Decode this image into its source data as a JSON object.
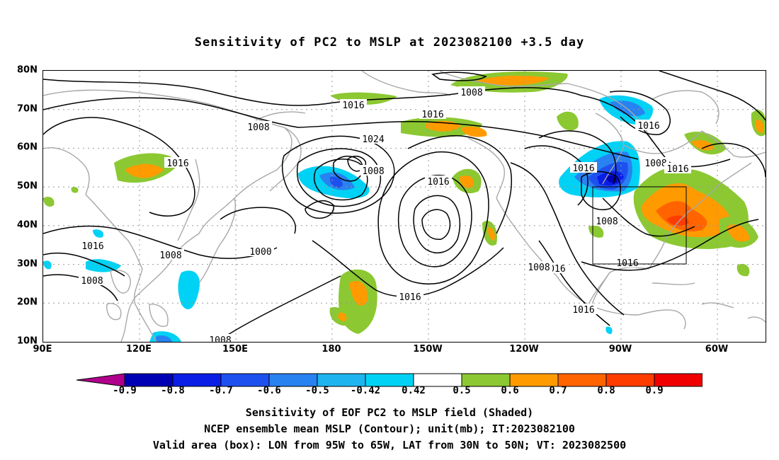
{
  "title": "Sensitivity of PC2 to MSLP at 2023082100 +3.5 day",
  "lat_ticks": [
    "80N",
    "70N",
    "60N",
    "50N",
    "40N",
    "30N",
    "20N",
    "10N"
  ],
  "lon_ticks": [
    "90E",
    "120E",
    "150E",
    "180",
    "150W",
    "120W",
    "90W",
    "60W"
  ],
  "colorbar": {
    "labels": [
      "-0.9",
      "-0.8",
      "-0.7",
      "-0.6",
      "-0.5",
      "-0.42",
      "0.42",
      "0.5",
      "0.6",
      "0.7",
      "0.8",
      "0.9"
    ],
    "colors": [
      "#b0008c",
      "#0000b4",
      "#0a1ee6",
      "#1e50f0",
      "#2882f0",
      "#1eb4f0",
      "#00d2f5",
      "#ffffff",
      "#8cc832",
      "#ff9b00",
      "#ff6400",
      "#ff3c00",
      "#f00000",
      "#f5a0c8"
    ]
  },
  "contour_labels": [
    "1008",
    "1016",
    "1016",
    "1008",
    "1016",
    "1024",
    "1016",
    "1000",
    "1016",
    "1008",
    "1016",
    "1008",
    "1008",
    "1008",
    "1016",
    "1016",
    "1008",
    "1016",
    "1016",
    "1016",
    "1008",
    "1008",
    "1016"
  ],
  "footer": {
    "line1": "Sensitivity of EOF PC2 to MSLP field (Shaded)",
    "line2": "NCEP ensemble mean MSLP (Contour); unit(mb); IT:2023082100",
    "line3": "Valid area (box): LON from 95W to 65W, LAT from 30N to 50N; VT: 2023082500"
  },
  "map_colors": {
    "coast": "#a8a8a8",
    "contour": "#000000",
    "grid": "#999999"
  }
}
